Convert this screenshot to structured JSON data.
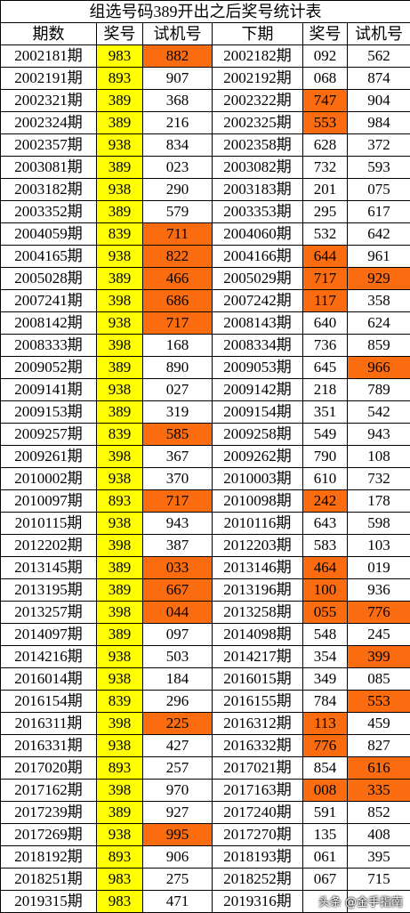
{
  "title": "组选号码389开出之后奖号统计表",
  "header": [
    "期数",
    "奖号",
    "试机号",
    "下期",
    "奖号",
    "试机号"
  ],
  "rows": [
    [
      "2002181期",
      "983",
      "882",
      "2002182期",
      "092",
      "562"
    ],
    [
      "2002191期",
      "893",
      "907",
      "2002192期",
      "068",
      "874"
    ],
    [
      "2002321期",
      "389",
      "368",
      "2002322期",
      "747",
      "904"
    ],
    [
      "2002324期",
      "389",
      "216",
      "2002325期",
      "553",
      "984"
    ],
    [
      "2002357期",
      "938",
      "834",
      "2002358期",
      "628",
      "372"
    ],
    [
      "2003081期",
      "389",
      "023",
      "2003082期",
      "732",
      "593"
    ],
    [
      "2003182期",
      "938",
      "290",
      "2003183期",
      "201",
      "075"
    ],
    [
      "2003352期",
      "389",
      "579",
      "2003353期",
      "295",
      "617"
    ],
    [
      "2004059期",
      "839",
      "711",
      "2004060期",
      "532",
      "642"
    ],
    [
      "2004165期",
      "938",
      "822",
      "2004166期",
      "644",
      "961"
    ],
    [
      "2005028期",
      "389",
      "466",
      "2005029期",
      "717",
      "929"
    ],
    [
      "2007241期",
      "398",
      "686",
      "2007242期",
      "117",
      "358"
    ],
    [
      "2008142期",
      "938",
      "717",
      "2008143期",
      "640",
      "624"
    ],
    [
      "2008333期",
      "398",
      "168",
      "2008334期",
      "736",
      "859"
    ],
    [
      "2009052期",
      "389",
      "890",
      "2009053期",
      "645",
      "966"
    ],
    [
      "2009141期",
      "938",
      "027",
      "2009142期",
      "218",
      "789"
    ],
    [
      "2009153期",
      "389",
      "319",
      "2009154期",
      "351",
      "542"
    ],
    [
      "2009257期",
      "839",
      "585",
      "2009258期",
      "549",
      "943"
    ],
    [
      "2009261期",
      "398",
      "367",
      "2009262期",
      "790",
      "108"
    ],
    [
      "2010002期",
      "938",
      "370",
      "2010003期",
      "610",
      "732"
    ],
    [
      "2010097期",
      "893",
      "717",
      "2010098期",
      "242",
      "178"
    ],
    [
      "2010115期",
      "938",
      "943",
      "2010116期",
      "643",
      "598"
    ],
    [
      "2012202期",
      "398",
      "387",
      "2012203期",
      "583",
      "103"
    ],
    [
      "2013145期",
      "389",
      "033",
      "2013146期",
      "464",
      "019"
    ],
    [
      "2013195期",
      "389",
      "667",
      "2013196期",
      "100",
      "936"
    ],
    [
      "2013257期",
      "398",
      "044",
      "2013258期",
      "055",
      "776"
    ],
    [
      "2014097期",
      "389",
      "097",
      "2014098期",
      "548",
      "245"
    ],
    [
      "2014216期",
      "938",
      "503",
      "2014217期",
      "354",
      "399"
    ],
    [
      "2016014期",
      "938",
      "184",
      "2016015期",
      "349",
      "085"
    ],
    [
      "2016154期",
      "839",
      "296",
      "2016155期",
      "784",
      "553"
    ],
    [
      "2016311期",
      "398",
      "225",
      "2016312期",
      "113",
      "459"
    ],
    [
      "2016331期",
      "938",
      "427",
      "2016332期",
      "776",
      "827"
    ],
    [
      "2017020期",
      "893",
      "257",
      "2017021期",
      "854",
      "616"
    ],
    [
      "2017162期",
      "398",
      "970",
      "2017163期",
      "008",
      "335"
    ],
    [
      "2017239期",
      "389",
      "927",
      "2017240期",
      "591",
      "852"
    ],
    [
      "2017269期",
      "938",
      "995",
      "2017270期",
      "135",
      "408"
    ],
    [
      "2018192期",
      "893",
      "906",
      "2018193期",
      "061",
      "395"
    ],
    [
      "2018251期",
      "983",
      "275",
      "2018252期",
      "067",
      "715"
    ],
    [
      "2019315期",
      "983",
      "471",
      "2019316期"
    ]
  ],
  "highlight_color": "#fb6b0f",
  "draw_column_color": "#ffff00",
  "highlighted_cells": [
    [
      0,
      2
    ],
    [
      2,
      4
    ],
    [
      3,
      4
    ],
    [
      8,
      2
    ],
    [
      9,
      2
    ],
    [
      9,
      4
    ],
    [
      10,
      2
    ],
    [
      10,
      4
    ],
    [
      10,
      5
    ],
    [
      11,
      2
    ],
    [
      11,
      4
    ],
    [
      12,
      2
    ],
    [
      14,
      5
    ],
    [
      17,
      2
    ],
    [
      20,
      2
    ],
    [
      20,
      4
    ],
    [
      23,
      2
    ],
    [
      23,
      4
    ],
    [
      24,
      2
    ],
    [
      24,
      4
    ],
    [
      25,
      2
    ],
    [
      25,
      4
    ],
    [
      25,
      5
    ],
    [
      27,
      5
    ],
    [
      29,
      5
    ],
    [
      30,
      2
    ],
    [
      30,
      4
    ],
    [
      31,
      4
    ],
    [
      32,
      5
    ],
    [
      33,
      4
    ],
    [
      33,
      5
    ],
    [
      35,
      2
    ]
  ],
  "watermark": "头条 @金手指南"
}
